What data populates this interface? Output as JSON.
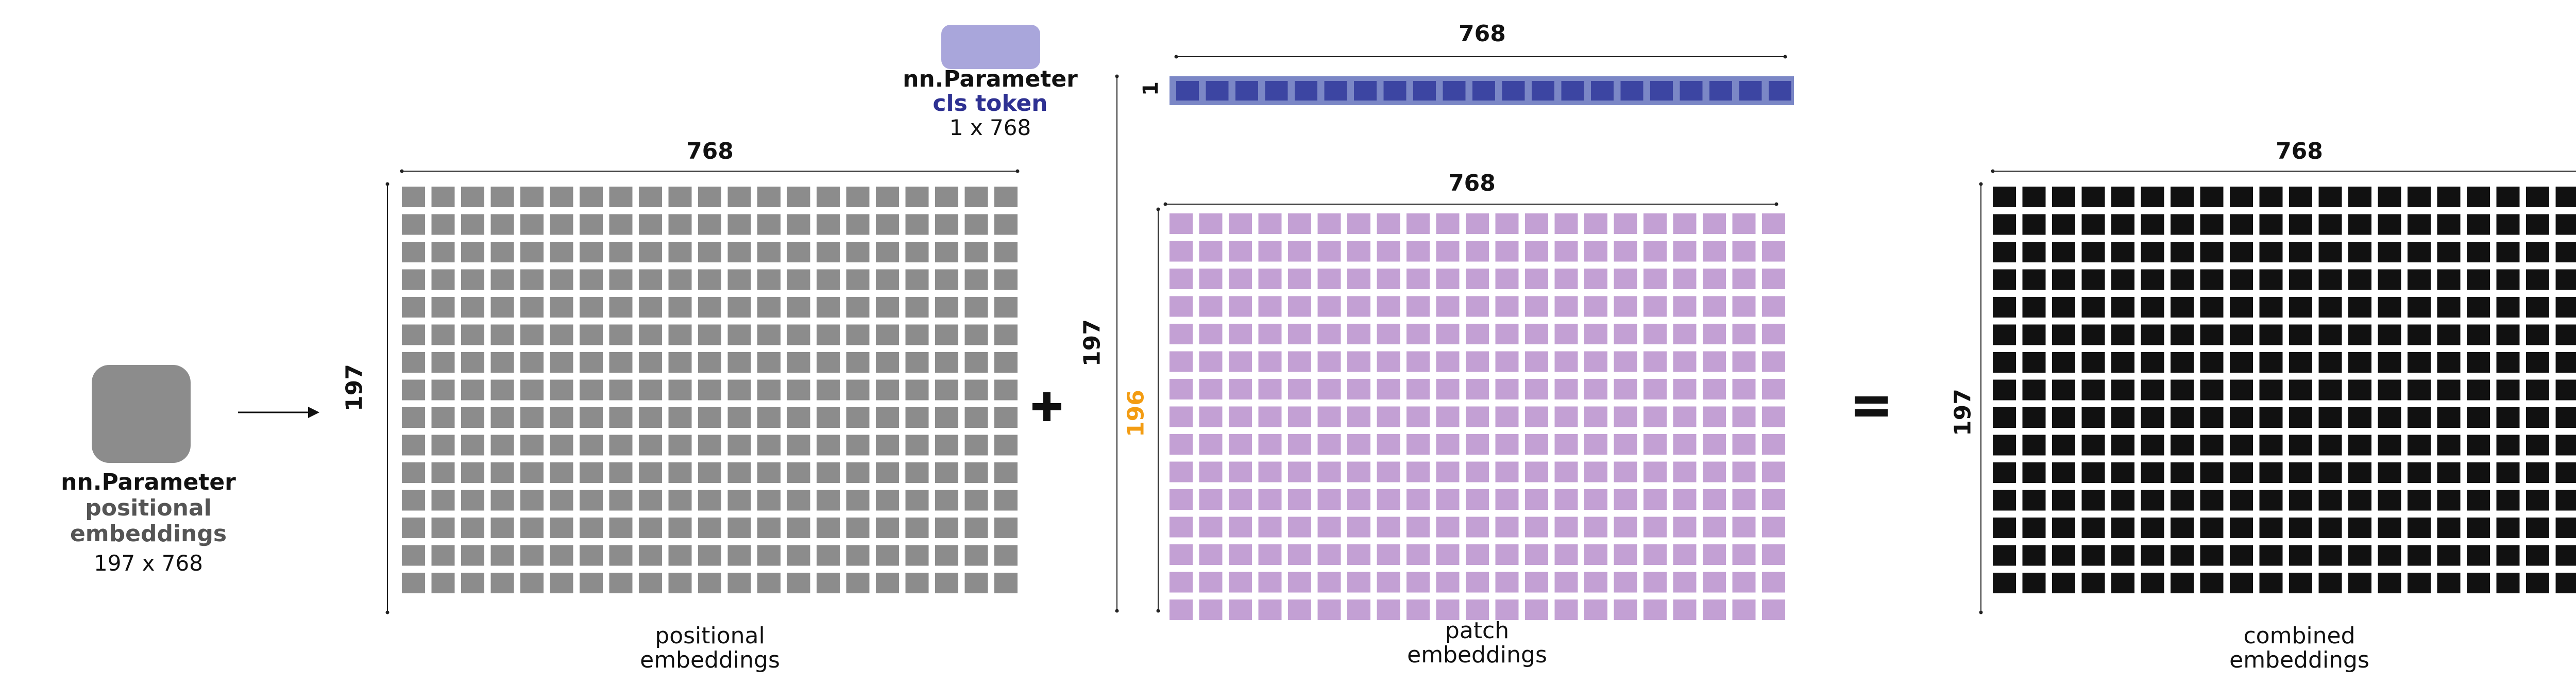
{
  "colors": {
    "positional": "#8c8c8c",
    "cls_bg": "#7b87c6",
    "cls_cell": "#3c45a2",
    "cls_box": "#a9a6db",
    "patch": "#c3a0d4",
    "combined": "#111111",
    "orange": "#f39c12",
    "cls_text": "#2e3192",
    "gray_text": "#555555"
  },
  "icons": {
    "positional_param": "rounded-square",
    "cls_param": "rounded-rectangle",
    "arrow": "right-arrow",
    "plus": "plus-sign",
    "equals": "equals-sign"
  },
  "positional_param": {
    "title": "nn.Parameter",
    "line1": "positional",
    "line2": "embeddings",
    "shape": "197 x 768"
  },
  "cls_param": {
    "title": "nn.Parameter",
    "name": "cls token",
    "shape": "1 x 768"
  },
  "positional_grid": {
    "width_label": "768",
    "height_label": "197",
    "caption_line1": "positional",
    "caption_line2": "embeddings"
  },
  "cls_row": {
    "width_label": "768",
    "height_label": "1"
  },
  "patch_grid": {
    "width_label": "768",
    "height_label": "196",
    "outer_height_label": "197",
    "caption_line1": "patch",
    "caption_line2": "embeddings"
  },
  "combined_grid": {
    "width_label": "768",
    "height_label": "197",
    "caption_line1": "combined",
    "caption_line2": "embeddings"
  }
}
